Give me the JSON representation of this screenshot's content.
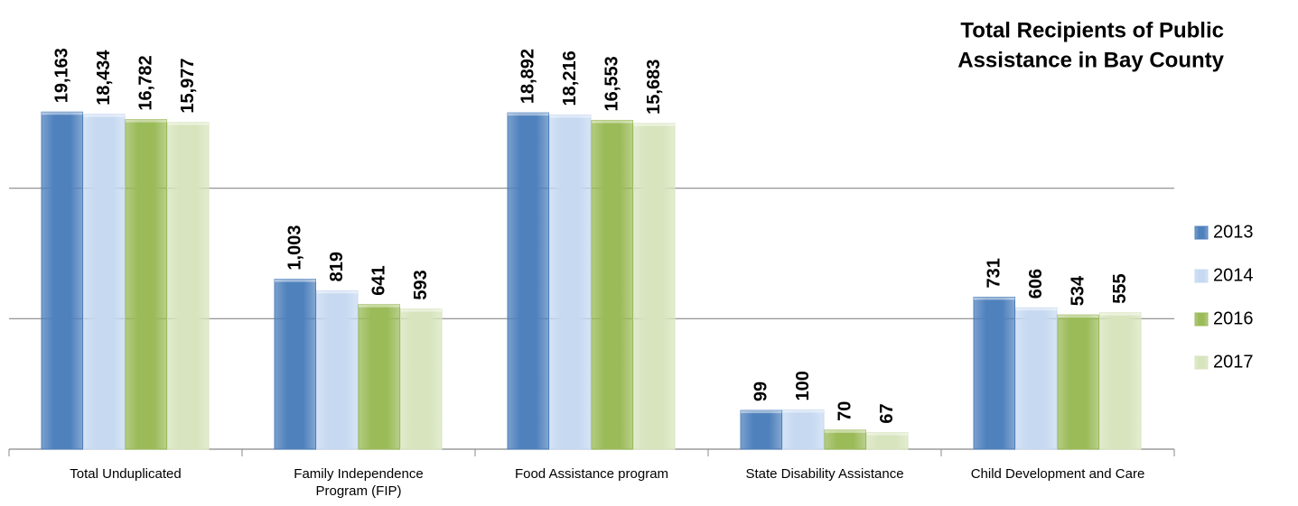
{
  "chart_data": {
    "type": "bar",
    "title": "Total Recipients of Public Assistance in Bay County",
    "categories": [
      "Total Unduplicated",
      "Family Independence Program (FIP)",
      "Food Assistance program",
      "State Disability Assistance",
      "Child Development and Care"
    ],
    "series": [
      {
        "name": "2013",
        "color": "#4f81bd",
        "values": [
          19163,
          1003,
          18892,
          99,
          731
        ],
        "value_labels": [
          "19,163",
          "1,003",
          "18,892",
          "99",
          "731"
        ]
      },
      {
        "name": "2014",
        "color": "#c6d9f1",
        "values": [
          18434,
          819,
          18216,
          100,
          606
        ],
        "value_labels": [
          "18,434",
          "819",
          "18,216",
          "100",
          "606"
        ]
      },
      {
        "name": "2016",
        "color": "#9bbb59",
        "values": [
          16782,
          641,
          16553,
          70,
          534
        ],
        "value_labels": [
          "16,782",
          "641",
          "16,553",
          "70",
          "534"
        ]
      },
      {
        "name": "2017",
        "color": "#d7e4bd",
        "values": [
          15977,
          593,
          15683,
          67,
          555
        ],
        "value_labels": [
          "15,977",
          "593",
          "15,683",
          "67",
          "555"
        ]
      }
    ],
    "log_scale": true,
    "ylim": [
      50,
      50000
    ],
    "yticks": [
      50,
      500,
      5000
    ],
    "grid": true,
    "legend": "right"
  }
}
